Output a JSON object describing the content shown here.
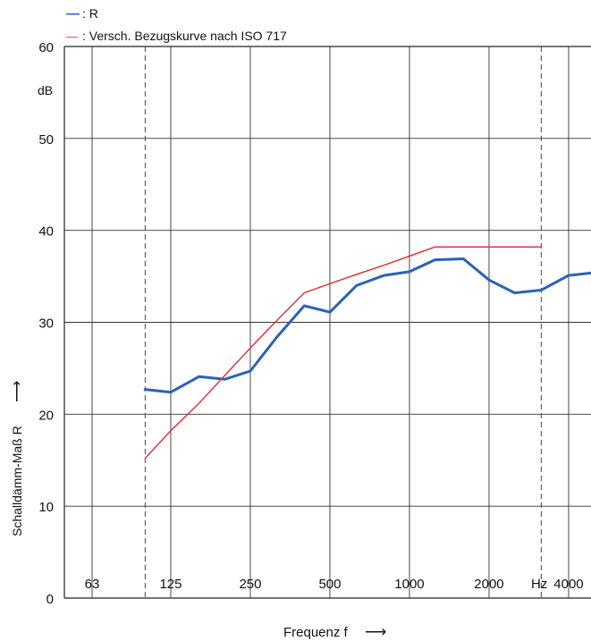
{
  "legend": [
    {
      "marker": "—",
      "label": ": R",
      "color": "#2a62b8"
    },
    {
      "marker": "—",
      "label": ": Versch. Bezugskurve nach ISO 717",
      "color": "#e0353a"
    }
  ],
  "chart_data": {
    "type": "line",
    "xlabel": "Frequenz f",
    "xlabel_arrow": "⟶",
    "ylabel": "Schalldämm-Maß R",
    "ylabel_arrow": "⟶",
    "y_unit": "dB",
    "x_unit": "Hz",
    "x_scale": "log (third-octave bands)",
    "ylim": [
      0,
      60
    ],
    "xlim": [
      50,
      5000
    ],
    "y_ticks": [
      0,
      10,
      20,
      30,
      40,
      50,
      60
    ],
    "x_ticks": [
      {
        "value": 63,
        "label": "63"
      },
      {
        "value": 125,
        "label": "125"
      },
      {
        "value": 250,
        "label": "250"
      },
      {
        "value": 500,
        "label": "500"
      },
      {
        "value": 1000,
        "label": "1000"
      },
      {
        "value": 2000,
        "label": "2000"
      },
      {
        "value": 4000,
        "label": "4000"
      }
    ],
    "dashed_verticals": [
      100,
      3150
    ],
    "grid": true,
    "legend_position": "top-left, above plot",
    "series": [
      {
        "name": "R",
        "color": "#2a62b8",
        "x": [
          100,
          125,
          160,
          200,
          250,
          315,
          400,
          500,
          630,
          800,
          1000,
          1250,
          1600,
          2000,
          2500,
          3150,
          4000,
          5000
        ],
        "y": [
          22.7,
          22.4,
          24.1,
          23.8,
          24.7,
          28.4,
          31.8,
          31.1,
          34.0,
          35.1,
          35.5,
          36.8,
          36.9,
          34.6,
          33.2,
          33.5,
          35.1,
          35.4
        ]
      },
      {
        "name": "Versch. Bezugskurve nach ISO 717",
        "color": "#e0353a",
        "x": [
          100,
          125,
          160,
          200,
          250,
          315,
          400,
          500,
          630,
          800,
          1000,
          1250,
          1600,
          2000,
          2500,
          3150
        ],
        "y": [
          15.2,
          18.2,
          21.2,
          24.2,
          27.2,
          30.2,
          33.2,
          34.2,
          35.2,
          36.2,
          37.2,
          38.2,
          38.2,
          38.2,
          38.2,
          38.2
        ]
      }
    ]
  }
}
